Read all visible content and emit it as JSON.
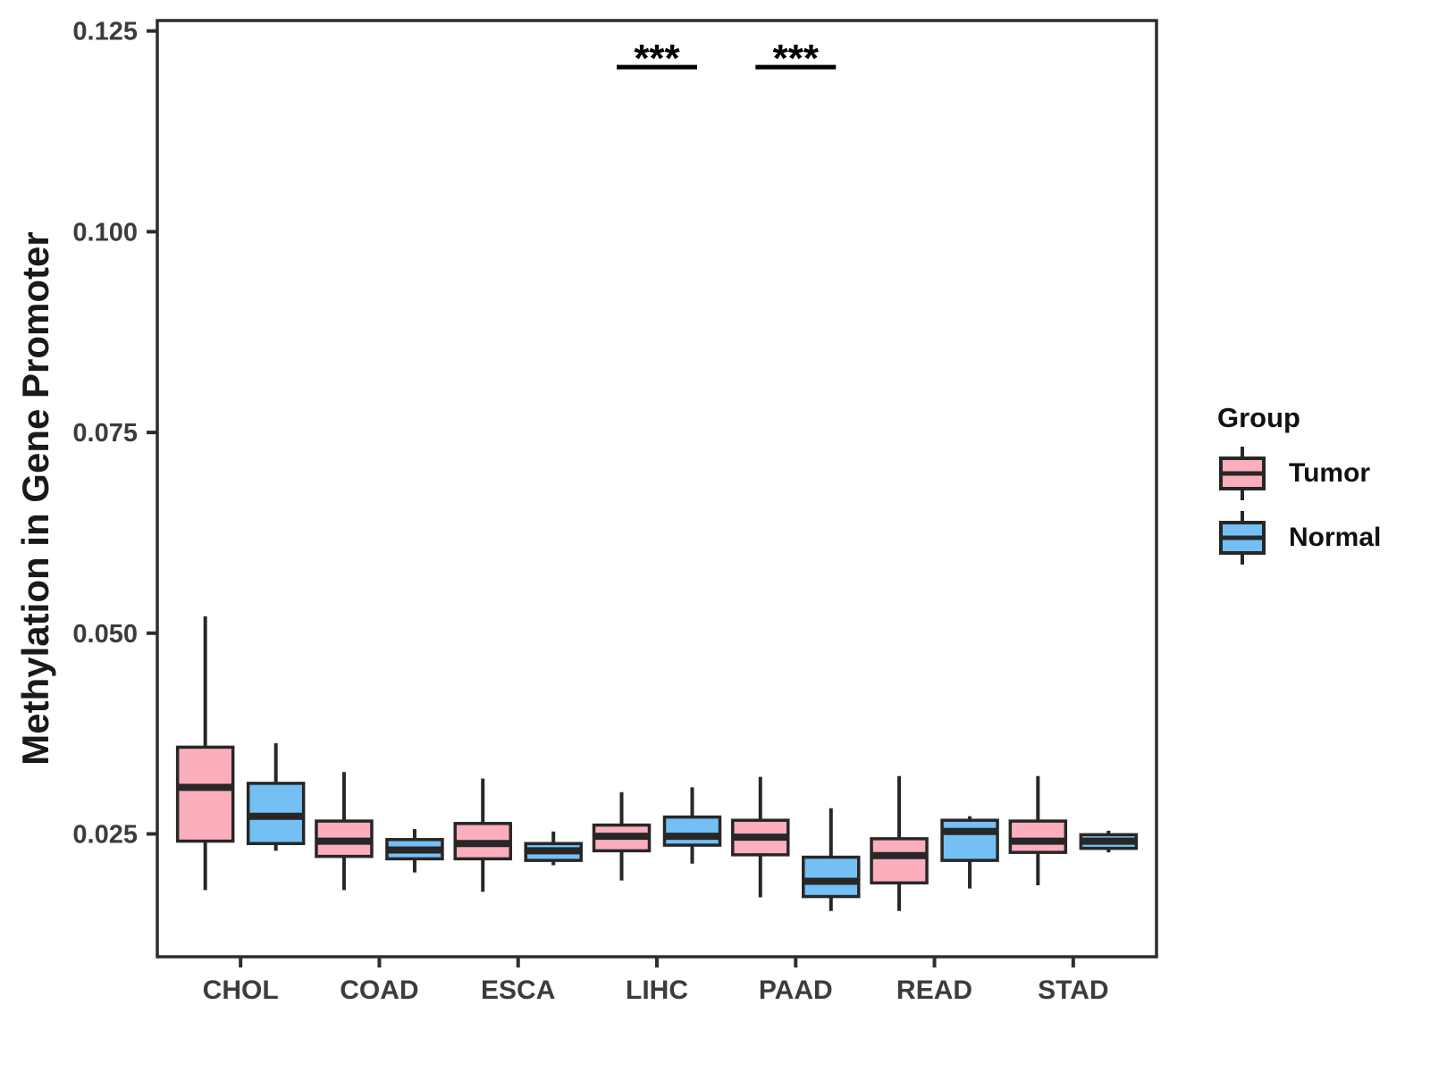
{
  "chart_data": {
    "type": "boxplot",
    "title": "",
    "xlabel": "",
    "ylabel": "Methylation in Gene Promoter",
    "categories": [
      "CHOL",
      "COAD",
      "ESCA",
      "LIHC",
      "PAAD",
      "READ",
      "STAD"
    ],
    "y_ticks": {
      "labels": [
        "0.025",
        "0.050",
        "0.075",
        "0.100",
        "0.125"
      ],
      "values": [
        0.025,
        0.05,
        0.075,
        0.1,
        0.125
      ]
    },
    "ylim": [
      0.0097,
      0.1263
    ],
    "grid": "off",
    "legend_position": "right",
    "legend": {
      "title": "Group"
    },
    "colors": {
      "box_outline": "#272727",
      "axis": "#2e2e2e",
      "tick_text": "#3c3c3c",
      "annotation": "#000000"
    },
    "series": [
      {
        "name": "Tumor",
        "fill": "#FCAEBD",
        "boxes": [
          {
            "low": 0.018,
            "q1": 0.0241,
            "median": 0.0308,
            "q3": 0.0358,
            "high": 0.0521
          },
          {
            "low": 0.018,
            "q1": 0.0222,
            "median": 0.0241,
            "q3": 0.0266,
            "high": 0.0327
          },
          {
            "low": 0.0178,
            "q1": 0.0219,
            "median": 0.0238,
            "q3": 0.0263,
            "high": 0.0319
          },
          {
            "low": 0.0192,
            "q1": 0.0229,
            "median": 0.0247,
            "q3": 0.0261,
            "high": 0.0302
          },
          {
            "low": 0.0171,
            "q1": 0.0224,
            "median": 0.0246,
            "q3": 0.0267,
            "high": 0.0321
          },
          {
            "low": 0.0154,
            "q1": 0.0189,
            "median": 0.0223,
            "q3": 0.0244,
            "high": 0.0322
          },
          {
            "low": 0.0186,
            "q1": 0.0227,
            "median": 0.0241,
            "q3": 0.0266,
            "high": 0.0322
          }
        ]
      },
      {
        "name": "Normal",
        "fill": "#74BFF4",
        "boxes": [
          {
            "low": 0.0229,
            "q1": 0.0238,
            "median": 0.0272,
            "q3": 0.0313,
            "high": 0.0363
          },
          {
            "low": 0.0202,
            "q1": 0.0219,
            "median": 0.023,
            "q3": 0.0243,
            "high": 0.0256
          },
          {
            "low": 0.0211,
            "q1": 0.0217,
            "median": 0.0229,
            "q3": 0.0238,
            "high": 0.0253
          },
          {
            "low": 0.0213,
            "q1": 0.0236,
            "median": 0.0247,
            "q3": 0.0271,
            "high": 0.0308
          },
          {
            "low": 0.0154,
            "q1": 0.0172,
            "median": 0.0191,
            "q3": 0.0221,
            "high": 0.0282
          },
          {
            "low": 0.0182,
            "q1": 0.0217,
            "median": 0.0253,
            "q3": 0.0267,
            "high": 0.0272
          },
          {
            "low": 0.0227,
            "q1": 0.0232,
            "median": 0.0241,
            "q3": 0.0249,
            "high": 0.0254
          }
        ]
      }
    ],
    "annotations": [
      {
        "text": "***",
        "category": "LIHC",
        "bar_y": 0.1205
      },
      {
        "text": "***",
        "category": "PAAD",
        "bar_y": 0.1205
      }
    ]
  }
}
